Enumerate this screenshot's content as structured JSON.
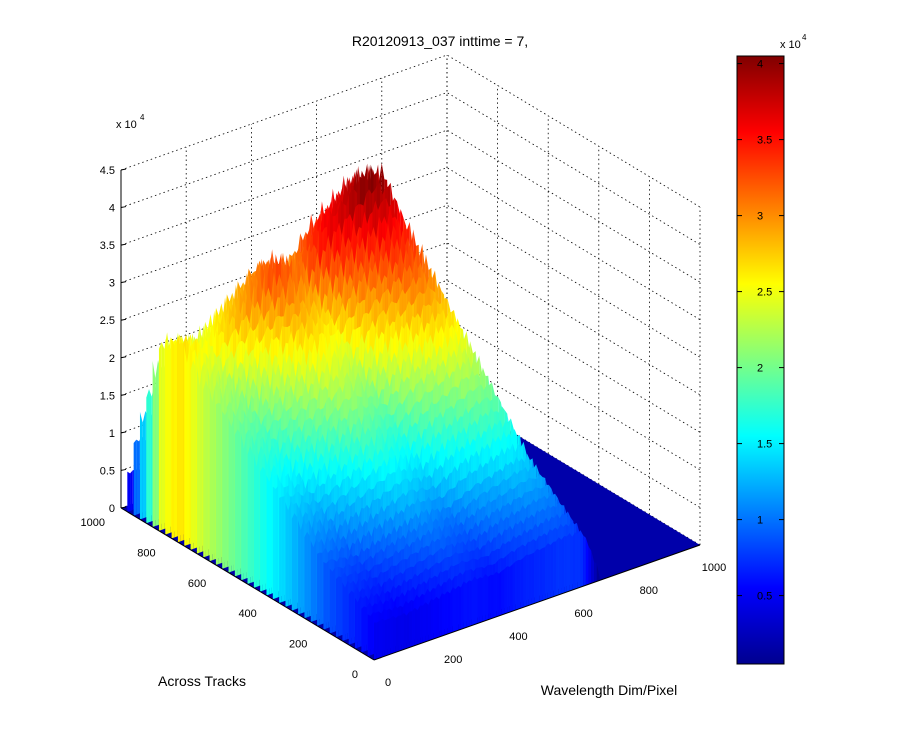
{
  "chart_data": {
    "type": "surface",
    "title": "R20120913_037 inttime = 7,",
    "xlabel": "Wavelength Dim/Pixel",
    "ylabel": "Across Tracks",
    "zlabel": "",
    "xlim": [
      0,
      1000
    ],
    "ylim": [
      0,
      1000
    ],
    "zlim": [
      0,
      45000
    ],
    "grid": true,
    "colormap": "jet",
    "x_ticks": [
      "0",
      "200",
      "400",
      "600",
      "800",
      "1000"
    ],
    "y_ticks": [
      "0",
      "200",
      "400",
      "600",
      "800",
      "1000"
    ],
    "z_ticks": [
      "0",
      "0.5",
      "1",
      "1.5",
      "2",
      "2.5",
      "3",
      "3.5",
      "4",
      "4.5"
    ],
    "z_multiplier": "x 10",
    "z_multiplier_exp": "4",
    "colorbar": {
      "ticks": [
        "0.5",
        "1",
        "1.5",
        "2",
        "2.5",
        "3",
        "3.5",
        "4"
      ],
      "range": [
        500,
        40500
      ],
      "multiplier": "x 10",
      "multiplier_exp": "4"
    },
    "surface": {
      "peaks_along_left_edge_x0": [
        {
          "y": 0,
          "z": 5000
        },
        {
          "y": 200,
          "z": 9000
        },
        {
          "y": 400,
          "z": 15000
        },
        {
          "y": 500,
          "z": 18000
        },
        {
          "y": 600,
          "z": 21000
        },
        {
          "y": 700,
          "z": 24000
        },
        {
          "y": 780,
          "z": 27000
        },
        {
          "y": 850,
          "z": 25000
        },
        {
          "y": 950,
          "z": 10000
        },
        {
          "y": 1000,
          "z": 500
        }
      ],
      "spectrum_at_peak_track": [
        {
          "x": 0,
          "z": 27000
        },
        {
          "x": 100,
          "z": 25000
        },
        {
          "x": 200,
          "z": 29000
        },
        {
          "x": 300,
          "z": 33000
        },
        {
          "x": 380,
          "z": 31000
        },
        {
          "x": 460,
          "z": 36000
        },
        {
          "x": 520,
          "z": 38000
        },
        {
          "x": 580,
          "z": 40500
        },
        {
          "x": 640,
          "z": 39500
        },
        {
          "x": 700,
          "z": 500
        },
        {
          "x": 1000,
          "z": 500
        }
      ]
    }
  }
}
